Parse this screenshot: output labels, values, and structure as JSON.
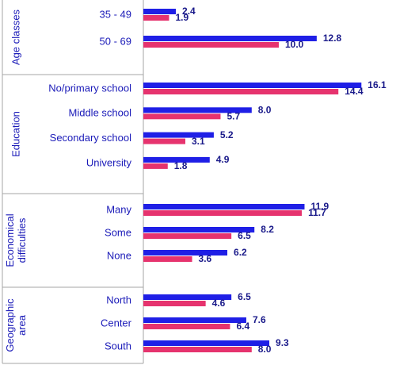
{
  "chart_data": {
    "type": "bar",
    "orientation": "horizontal",
    "xlim": [
      0,
      17
    ],
    "colors": {
      "series1": "#1f1fe6",
      "series2": "#e6336e",
      "divider": "#a6a6a6",
      "text": "#1a1ab8"
    },
    "groups": [
      {
        "name": "Age classes",
        "name_lines": [
          "Age classes"
        ],
        "categories": [
          {
            "label": "35 - 49",
            "values": [
              2.4,
              1.9
            ]
          },
          {
            "label": "50 - 69",
            "values": [
              12.8,
              10.0
            ]
          }
        ]
      },
      {
        "name": "Education",
        "name_lines": [
          "Education"
        ],
        "categories": [
          {
            "label": "No/primary school",
            "values": [
              16.1,
              14.4
            ]
          },
          {
            "label": "Middle school",
            "values": [
              8.0,
              5.7
            ]
          },
          {
            "label": "Secondary school",
            "values": [
              5.2,
              3.1
            ]
          },
          {
            "label": "University",
            "values": [
              4.9,
              1.8
            ]
          }
        ]
      },
      {
        "name": "Economical difficulties",
        "name_lines": [
          "Economical",
          "difficulties"
        ],
        "categories": [
          {
            "label": "Many",
            "values": [
              11.9,
              11.7
            ]
          },
          {
            "label": "Some",
            "values": [
              8.2,
              6.5
            ]
          },
          {
            "label": "None",
            "values": [
              6.2,
              3.6
            ]
          }
        ]
      },
      {
        "name": "Geographic area",
        "name_lines": [
          "Geographic",
          "area"
        ],
        "categories": [
          {
            "label": "North",
            "values": [
              6.5,
              4.6
            ]
          },
          {
            "label": "Center",
            "values": [
              7.6,
              6.4
            ]
          },
          {
            "label": "South",
            "values": [
              9.3,
              8.0
            ]
          }
        ]
      }
    ]
  }
}
